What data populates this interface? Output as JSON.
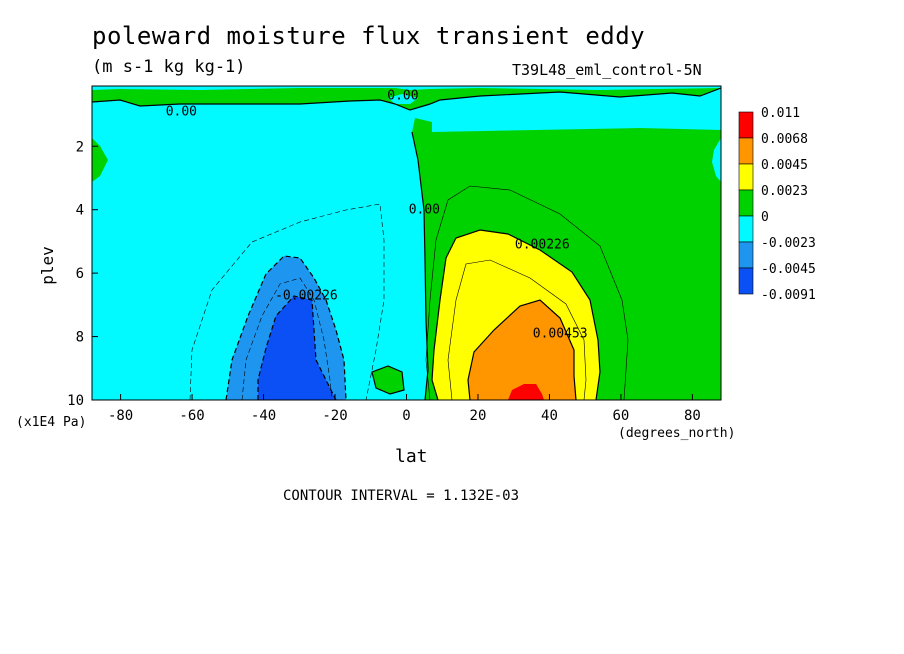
{
  "chart_data": {
    "type": "contour",
    "title": "poleward moisture flux transient eddy",
    "units": "(m s-1 kg kg-1)",
    "dataset": "T39L48_eml_control-5N",
    "xlabel": "lat",
    "xunits": "(degrees_north)",
    "ylabel": "plev",
    "yunits": "(x1E4 Pa)",
    "xlim": [
      -88,
      88
    ],
    "ylim": [
      10,
      0.1
    ],
    "x_ticks": [
      -80,
      -60,
      -40,
      -20,
      0,
      20,
      40,
      60,
      80
    ],
    "y_ticks": [
      2,
      4,
      6,
      8,
      10
    ],
    "contour_interval_text": "CONTOUR INTERVAL = 1.132E-03",
    "colorbar": {
      "colors": [
        "#0a50f5",
        "#1e96f0",
        "#00faff",
        "#00d200",
        "#ffff00",
        "#ff9600",
        "#ff0000"
      ],
      "labels": [
        "0.011",
        "0.0068",
        "0.0045",
        "0.0023",
        "0",
        "-0.0023",
        "-0.0045",
        "-0.0091"
      ]
    },
    "contour_labels": [
      {
        "text": "0.00",
        "lat": -63,
        "plev": 0.9
      },
      {
        "text": "0.00",
        "lat": -1,
        "plev": 0.4
      },
      {
        "text": "0.00",
        "lat": 5,
        "plev": 4.0
      },
      {
        "text": "-0.00226",
        "lat": -28,
        "plev": 6.7
      },
      {
        "text": "0.00226",
        "lat": 38,
        "plev": 5.1
      },
      {
        "text": "0.00453",
        "lat": 43,
        "plev": 7.9
      }
    ],
    "features": [
      {
        "sign": "positive",
        "center_lat": 32,
        "center_plev": 9.8,
        "max": 0.011
      },
      {
        "sign": "negative",
        "center_lat": -33,
        "center_plev": 8.6,
        "min": -0.0091
      }
    ]
  }
}
